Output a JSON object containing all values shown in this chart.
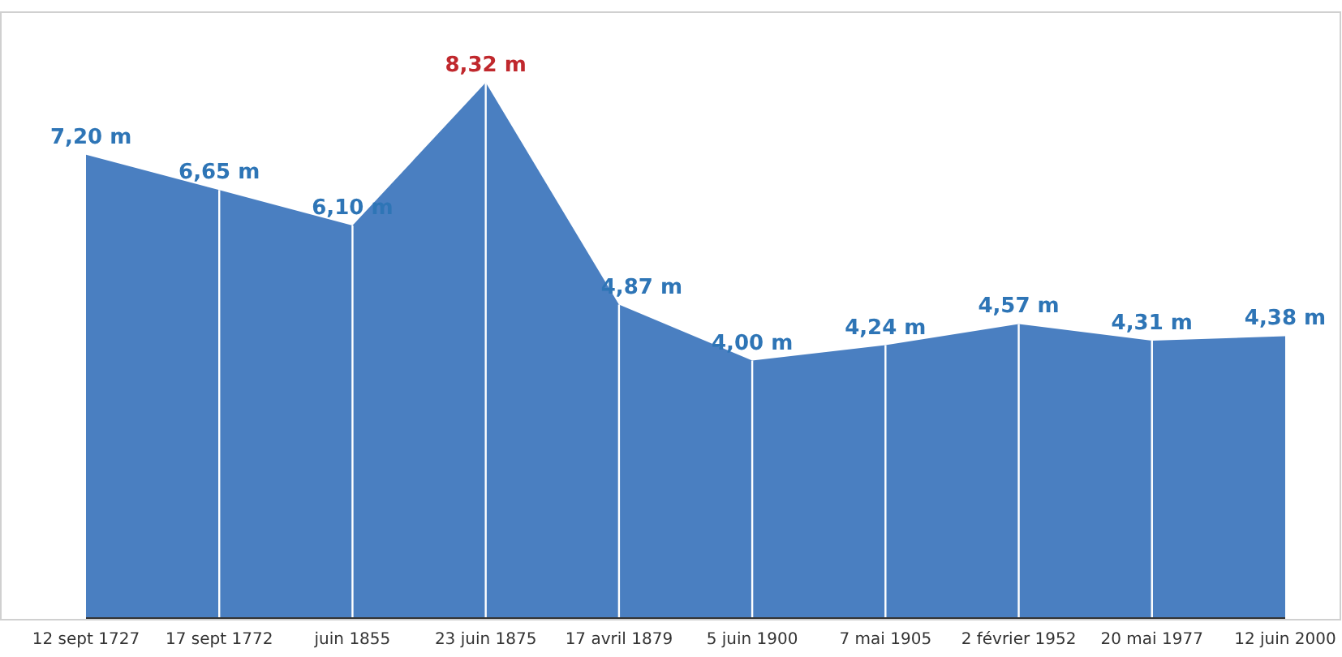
{
  "chart_data": {
    "type": "area",
    "categories": [
      "12 sept 1727",
      "17 sept 1772",
      "juin 1855",
      "23 juin 1875",
      "17 avril 1879",
      "5 juin 1900",
      "7 mai 1905",
      "2 février 1952",
      "20 mai 1977",
      "12 juin 2000"
    ],
    "series": [
      {
        "color": "#4a7fc1",
        "values": [
          7.2,
          6.65,
          6.1,
          8.32,
          4.87,
          4.0,
          4.24,
          4.57,
          4.31,
          4.38
        ],
        "value_labels": [
          "7,20 m",
          "6,65 m",
          "6,10 m",
          "8,32 m",
          "4,87 m",
          "4,00 m",
          "4,24 m",
          "4,57 m",
          "4,31 m",
          "4,38 m"
        ],
        "colors": [
          "#2e75b6",
          "#2e75b6",
          "#2e75b6",
          "#c0282d",
          "#2e75b6",
          "#2e75b6",
          "#2e75b6",
          "#2e75b6",
          "#2e75b6",
          "#2e75b6"
        ]
      }
    ],
    "grid": "x"
  }
}
